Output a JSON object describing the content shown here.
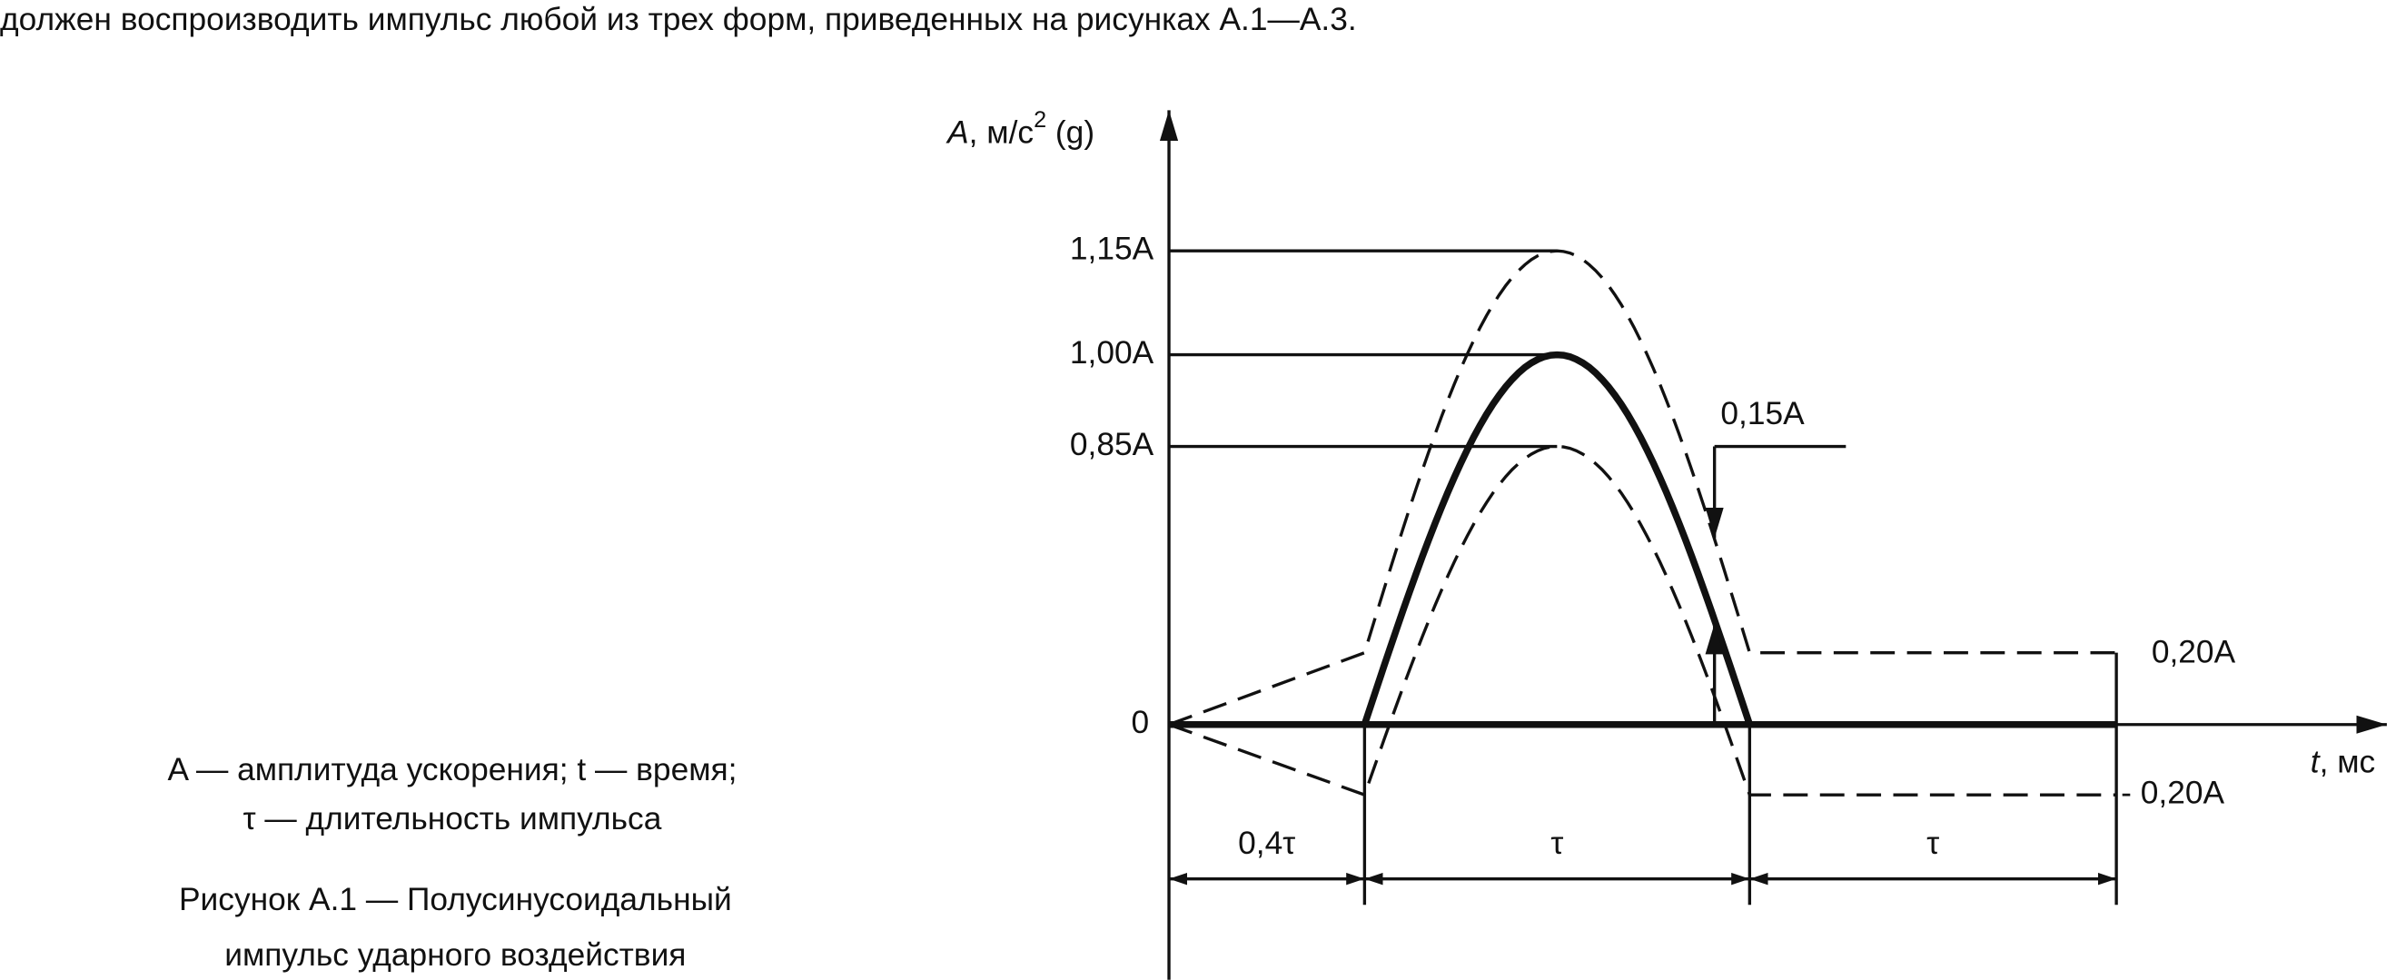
{
  "intro": "должен воспроизводить импульс любой из трех форм, приведенных на рисунках А.1—А.3.",
  "axis_y": {
    "symbol": "A",
    "unit": ", м/с",
    "exponent": "2",
    "suffix": " (g)"
  },
  "axis_x": {
    "symbol": "t",
    "unit": ", мс"
  },
  "levels": [
    "1,15A",
    "1,00A",
    "0,85A",
    "0"
  ],
  "tolerance": "0,15A",
  "limits": [
    "0,20A",
    "- 0,20A"
  ],
  "durations": [
    "0,4τ",
    "τ",
    "τ"
  ],
  "legend": [
    "A — амплитуда ускорения; t — время;",
    "τ — длительность импульса"
  ],
  "caption": [
    "Рисунок А.1 — Полусинусоидальный",
    "импульс ударного воздействия"
  ]
}
